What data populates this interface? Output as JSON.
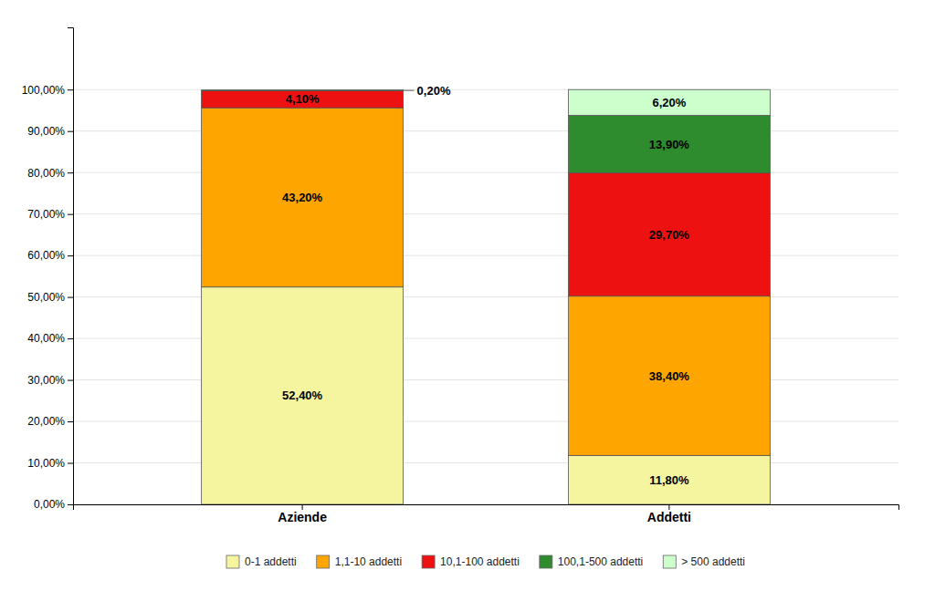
{
  "chart_data": {
    "type": "bar",
    "stacked": true,
    "categories": [
      "Aziende",
      "Addetti"
    ],
    "series": [
      {
        "name": "0-1 addetti",
        "color": "#F5F5A0",
        "values": [
          52.4,
          11.8
        ],
        "value_labels": [
          "52,40%",
          "11,80%"
        ]
      },
      {
        "name": "1,1-10 addetti",
        "color": "#FFA500",
        "values": [
          43.2,
          38.4
        ],
        "value_labels": [
          "43,20%",
          "38,40%"
        ]
      },
      {
        "name": "10,1-100 addetti",
        "color": "#EE1111",
        "values": [
          4.1,
          29.7
        ],
        "value_labels": [
          "4,10%",
          "29,70%"
        ]
      },
      {
        "name": "100,1-500 addetti",
        "color": "#2E8B2E",
        "values": [
          0.2,
          13.9
        ],
        "value_labels": [
          "0,20%",
          "13,90%"
        ]
      },
      {
        "name": "> 500 addetti",
        "color": "#CCFFCC",
        "values": [
          0.0,
          6.2
        ],
        "value_labels": [
          null,
          "6,20%"
        ]
      }
    ],
    "ylim": [
      0,
      115
    ],
    "yticks": [
      {
        "value": 0,
        "label": "0,00%"
      },
      {
        "value": 10,
        "label": "10,00%"
      },
      {
        "value": 20,
        "label": "20,00%"
      },
      {
        "value": 30,
        "label": "30,00%"
      },
      {
        "value": 40,
        "label": "40,00%"
      },
      {
        "value": 50,
        "label": "50,00%"
      },
      {
        "value": 60,
        "label": "60,00%"
      },
      {
        "value": 70,
        "label": "70,00%"
      },
      {
        "value": 80,
        "label": "80,00%"
      },
      {
        "value": 90,
        "label": "90,00%"
      },
      {
        "value": 100,
        "label": "100,00%"
      }
    ],
    "grid": true,
    "data_labels": true,
    "legend": "bottom"
  }
}
